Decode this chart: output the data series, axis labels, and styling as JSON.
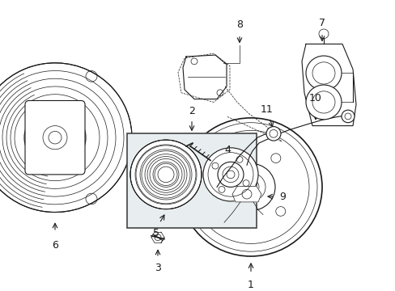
{
  "bg_color": "#ffffff",
  "fig_width": 4.89,
  "fig_height": 3.6,
  "dpi": 100,
  "line_color": "#1a1a1a",
  "label_fontsize": 9,
  "box_bg": "#e8eef0",
  "box_edge": "#444444"
}
